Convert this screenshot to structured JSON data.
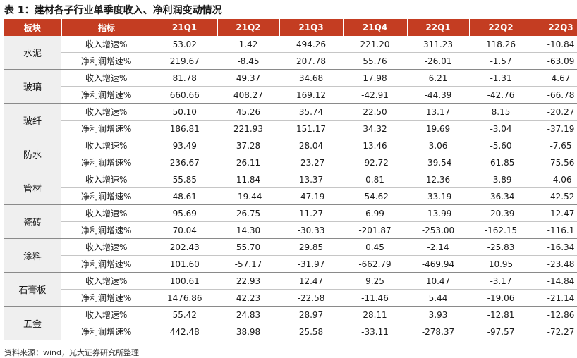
{
  "title": "表 1：建材各子行业单季度收入、净利润变动情况",
  "headers": [
    "板块",
    "指标",
    "21Q1",
    "21Q2",
    "21Q3",
    "21Q4",
    "22Q1",
    "22Q2",
    "22Q3"
  ],
  "groups": [
    {
      "sector": "水泥",
      "rows": [
        {
          "metric": "收入增速%",
          "values": [
            "53.02",
            "1.42",
            "494.26",
            "221.20",
            "311.23",
            "118.26",
            "-10.84"
          ]
        },
        {
          "metric": "净利润增速%",
          "values": [
            "219.67",
            "-8.45",
            "207.78",
            "55.76",
            "-26.01",
            "-1.57",
            "-63.09"
          ]
        }
      ]
    },
    {
      "sector": "玻璃",
      "rows": [
        {
          "metric": "收入增速%",
          "values": [
            "81.78",
            "49.37",
            "34.68",
            "17.98",
            "6.21",
            "-1.31",
            "4.67"
          ]
        },
        {
          "metric": "净利润增速%",
          "values": [
            "660.66",
            "408.27",
            "169.12",
            "-42.91",
            "-44.39",
            "-42.76",
            "-66.78"
          ]
        }
      ]
    },
    {
      "sector": "玻纤",
      "rows": [
        {
          "metric": "收入增速%",
          "values": [
            "50.10",
            "45.26",
            "35.74",
            "22.50",
            "13.17",
            "8.15",
            "-20.27"
          ]
        },
        {
          "metric": "净利润增速%",
          "values": [
            "186.81",
            "221.93",
            "151.17",
            "34.32",
            "19.69",
            "-3.04",
            "-37.19"
          ]
        }
      ]
    },
    {
      "sector": "防水",
      "rows": [
        {
          "metric": "收入增速%",
          "values": [
            "93.49",
            "37.28",
            "28.04",
            "13.46",
            "3.06",
            "-5.60",
            "-7.65"
          ]
        },
        {
          "metric": "净利润增速%",
          "values": [
            "236.67",
            "26.11",
            "-23.27",
            "-92.72",
            "-39.54",
            "-61.85",
            "-75.56"
          ]
        }
      ]
    },
    {
      "sector": "管材",
      "rows": [
        {
          "metric": "收入增速%",
          "values": [
            "55.85",
            "11.84",
            "13.37",
            "0.81",
            "12.36",
            "-3.89",
            "-4.06"
          ]
        },
        {
          "metric": "净利润增速%",
          "values": [
            "48.61",
            "-19.44",
            "-47.19",
            "-54.62",
            "-33.19",
            "-36.34",
            "-42.52"
          ]
        }
      ]
    },
    {
      "sector": "瓷砖",
      "rows": [
        {
          "metric": "收入增速%",
          "values": [
            "95.69",
            "26.75",
            "11.27",
            "6.99",
            "-13.99",
            "-20.39",
            "-12.47"
          ]
        },
        {
          "metric": "净利润增速%",
          "values": [
            "70.04",
            "14.30",
            "-30.33",
            "-201.87",
            "-253.00",
            "-162.15",
            "-116.1"
          ]
        }
      ]
    },
    {
      "sector": "涂料",
      "rows": [
        {
          "metric": "收入增速%",
          "values": [
            "202.43",
            "55.70",
            "29.85",
            "0.45",
            "-2.14",
            "-25.83",
            "-16.34"
          ]
        },
        {
          "metric": "净利润增速%",
          "values": [
            "101.60",
            "-57.17",
            "-31.97",
            "-662.79",
            "-469.94",
            "10.95",
            "-23.48"
          ]
        }
      ]
    },
    {
      "sector": "石膏板",
      "rows": [
        {
          "metric": "收入增速%",
          "values": [
            "100.61",
            "22.93",
            "12.47",
            "9.25",
            "10.47",
            "-3.17",
            "-14.84"
          ]
        },
        {
          "metric": "净利润增速%",
          "values": [
            "1476.86",
            "42.23",
            "-22.58",
            "-11.46",
            "5.44",
            "-19.06",
            "-21.14"
          ]
        }
      ]
    },
    {
      "sector": "五金",
      "rows": [
        {
          "metric": "收入增速%",
          "values": [
            "55.42",
            "24.83",
            "28.97",
            "28.11",
            "3.93",
            "-12.81",
            "-12.86"
          ]
        },
        {
          "metric": "净利润增速%",
          "values": [
            "442.48",
            "38.98",
            "25.58",
            "-33.11",
            "-278.37",
            "-97.57",
            "-72.27"
          ]
        }
      ]
    }
  ],
  "source": "资料来源：wind，光大证券研究所整理",
  "colors": {
    "header_bg": "#c43d22",
    "header_text": "#ffffff",
    "sector_bg": "#efefef"
  }
}
